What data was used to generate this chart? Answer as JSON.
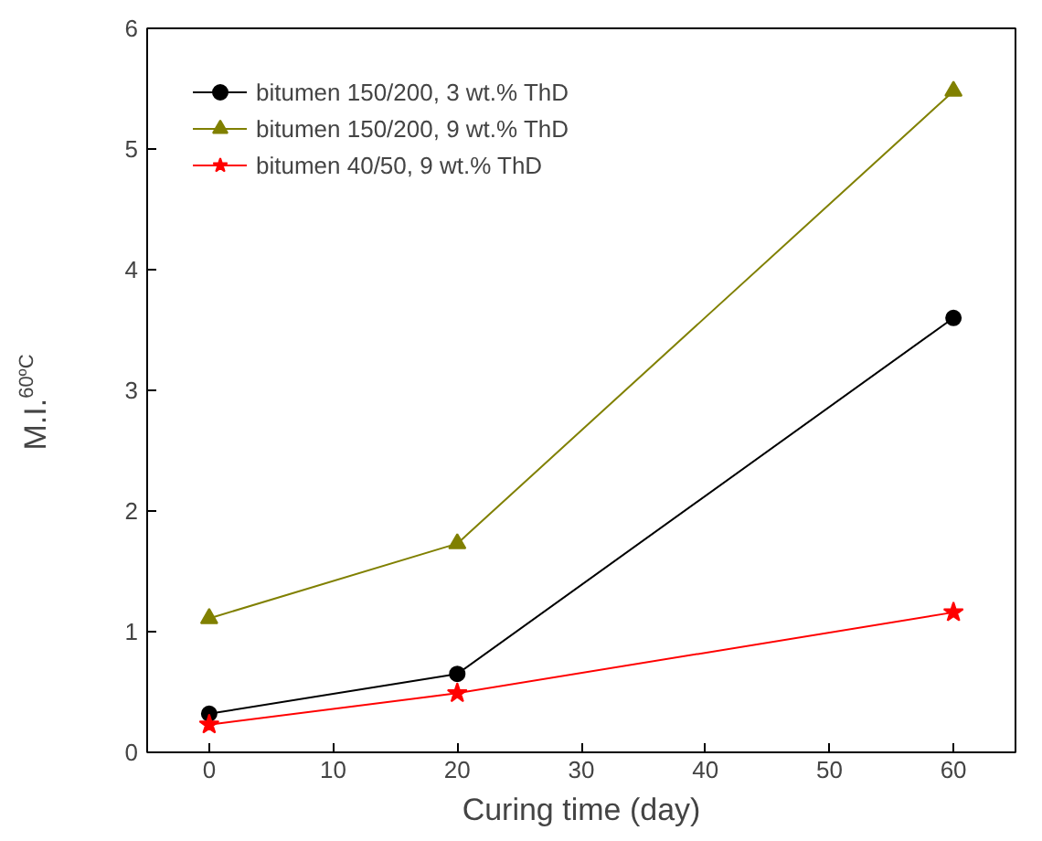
{
  "chart_data": {
    "type": "line",
    "xlabel": "Curing time (day)",
    "ylabel": "M.I.$^{60ºC}$",
    "x": [
      0,
      20,
      60
    ],
    "series": [
      {
        "name": "bitumen 150/200, 3 wt.% ThD",
        "color": "#000000",
        "marker": "circle",
        "values": [
          0.32,
          0.65,
          3.6
        ]
      },
      {
        "name": "bitumen 150/200, 9 wt.% ThD",
        "color": "#808000",
        "marker": "triangle",
        "values": [
          1.11,
          1.73,
          5.48
        ]
      },
      {
        "name": "bitumen 40/50, 9 wt.% ThD",
        "color": "#ff0000",
        "marker": "star",
        "values": [
          0.23,
          0.49,
          1.16
        ]
      }
    ],
    "xlim": [
      -5,
      65
    ],
    "xticks": [
      0,
      10,
      20,
      30,
      40,
      50,
      60
    ],
    "ylim": [
      0,
      6
    ],
    "yticks": [
      0,
      1,
      2,
      3,
      4,
      5,
      6
    ],
    "grid": false,
    "legend": "top left",
    "line_style": "solid"
  }
}
